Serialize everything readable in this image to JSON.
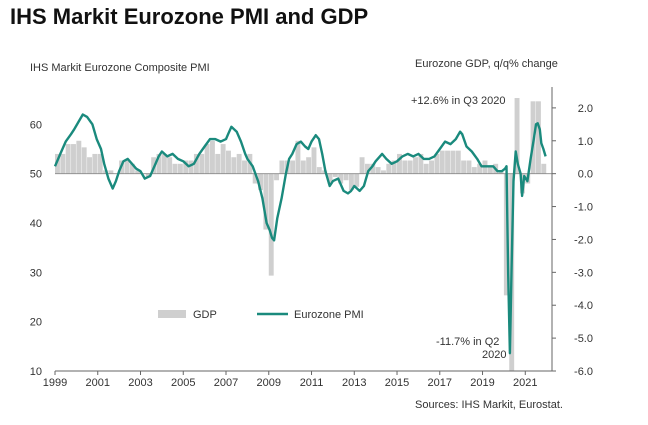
{
  "page": {
    "title": "IHS Markit Eurozone PMI and GDP"
  },
  "colors": {
    "pmi_line": "#1a8a7d",
    "gdp_bar": "#cfcfcf",
    "zero_line": "#888888",
    "axis": "#666666"
  },
  "chart_data": {
    "type": "bar+line",
    "title": "IHS Markit Eurozone PMI and GDP",
    "left_axis_label": "IHS Markit Eurozone Composite PMI",
    "right_axis_label": "Eurozone GDP, q/q% change",
    "left_ylim": [
      10,
      70
    ],
    "right_ylim": [
      -6.0,
      3.0
    ],
    "left_ticks": [
      "10",
      "20",
      "30",
      "40",
      "50",
      "60"
    ],
    "left_tick_values": [
      10,
      20,
      30,
      40,
      50,
      60
    ],
    "right_ticks": [
      "-6.0",
      "-5.0",
      "-4.0",
      "-3.0",
      "-2.0",
      "-1.0",
      "0.0",
      "1.0",
      "2.0"
    ],
    "right_tick_values": [
      -6.0,
      -5.0,
      -4.0,
      -3.0,
      -2.0,
      -1.0,
      0.0,
      1.0,
      2.0
    ],
    "xlim": [
      1999.0,
      2022.25
    ],
    "x_ticks": [
      "1999",
      "2001",
      "2003",
      "2005",
      "2007",
      "2009",
      "2011",
      "2013",
      "2015",
      "2017",
      "2019",
      "2021"
    ],
    "x_tick_values": [
      1999,
      2001,
      2003,
      2005,
      2007,
      2009,
      2011,
      2013,
      2015,
      2017,
      2019,
      2021
    ],
    "legend": {
      "gdp_label": "GDP",
      "pmi_label": "Eurozone PMI",
      "position": "bottom-left"
    },
    "annotations": {
      "q3_2020": "+12.6% in Q3 2020",
      "q2_2020_line1": "-11.7% in Q2",
      "q2_2020_line2": "2020"
    },
    "source": "Sources: IHS Markit, Eurostat.",
    "gdp_series": {
      "name": "GDP",
      "quarters": [
        [
          1999.0,
          0.6
        ],
        [
          1999.25,
          0.6
        ],
        [
          1999.5,
          0.9
        ],
        [
          1999.75,
          0.9
        ],
        [
          2000.0,
          1.0
        ],
        [
          2000.25,
          0.8
        ],
        [
          2000.5,
          0.5
        ],
        [
          2000.75,
          0.6
        ],
        [
          2001.0,
          0.6
        ],
        [
          2001.25,
          0.1
        ],
        [
          2001.5,
          0.1
        ],
        [
          2001.75,
          0.0
        ],
        [
          2002.0,
          0.4
        ],
        [
          2002.25,
          0.4
        ],
        [
          2002.5,
          0.3
        ],
        [
          2002.75,
          0.1
        ],
        [
          2003.0,
          0.0
        ],
        [
          2003.25,
          -0.1
        ],
        [
          2003.5,
          0.5
        ],
        [
          2003.75,
          0.6
        ],
        [
          2004.0,
          0.6
        ],
        [
          2004.25,
          0.5
        ],
        [
          2004.5,
          0.3
        ],
        [
          2004.75,
          0.3
        ],
        [
          2005.0,
          0.4
        ],
        [
          2005.25,
          0.4
        ],
        [
          2005.5,
          0.6
        ],
        [
          2005.75,
          0.6
        ],
        [
          2006.0,
          0.9
        ],
        [
          2006.25,
          1.0
        ],
        [
          2006.5,
          0.6
        ],
        [
          2006.75,
          0.9
        ],
        [
          2007.0,
          0.7
        ],
        [
          2007.25,
          0.5
        ],
        [
          2007.5,
          0.6
        ],
        [
          2007.75,
          0.4
        ],
        [
          2008.0,
          0.6
        ],
        [
          2008.25,
          -0.3
        ],
        [
          2008.5,
          -0.5
        ],
        [
          2008.75,
          -1.7
        ],
        [
          2009.0,
          -3.1
        ],
        [
          2009.25,
          -0.2
        ],
        [
          2009.5,
          0.4
        ],
        [
          2009.75,
          0.4
        ],
        [
          2010.0,
          0.4
        ],
        [
          2010.25,
          1.0
        ],
        [
          2010.5,
          0.4
        ],
        [
          2010.75,
          0.5
        ],
        [
          2011.0,
          0.8
        ],
        [
          2011.25,
          0.2
        ],
        [
          2011.5,
          0.1
        ],
        [
          2011.75,
          -0.3
        ],
        [
          2012.0,
          -0.1
        ],
        [
          2012.25,
          -0.3
        ],
        [
          2012.5,
          -0.2
        ],
        [
          2012.75,
          -0.5
        ],
        [
          2013.0,
          -0.4
        ],
        [
          2013.25,
          0.5
        ],
        [
          2013.5,
          0.3
        ],
        [
          2013.75,
          0.3
        ],
        [
          2014.0,
          0.2
        ],
        [
          2014.25,
          0.1
        ],
        [
          2014.5,
          0.3
        ],
        [
          2014.75,
          0.4
        ],
        [
          2015.0,
          0.6
        ],
        [
          2015.25,
          0.4
        ],
        [
          2015.5,
          0.4
        ],
        [
          2015.75,
          0.5
        ],
        [
          2016.0,
          0.6
        ],
        [
          2016.25,
          0.3
        ],
        [
          2016.5,
          0.4
        ],
        [
          2016.75,
          0.6
        ],
        [
          2017.0,
          0.7
        ],
        [
          2017.25,
          0.7
        ],
        [
          2017.5,
          0.7
        ],
        [
          2017.75,
          0.7
        ],
        [
          2018.0,
          0.4
        ],
        [
          2018.25,
          0.4
        ],
        [
          2018.5,
          0.2
        ],
        [
          2018.75,
          0.3
        ],
        [
          2019.0,
          0.4
        ],
        [
          2019.25,
          0.2
        ],
        [
          2019.5,
          0.3
        ],
        [
          2019.75,
          0.1
        ],
        [
          2020.0,
          -3.7
        ],
        [
          2020.25,
          -11.7
        ],
        [
          2020.5,
          12.6
        ],
        [
          2020.75,
          -0.6
        ],
        [
          2021.0,
          -0.3
        ],
        [
          2021.25,
          2.2
        ],
        [
          2021.5,
          2.2
        ],
        [
          2021.75,
          0.3
        ]
      ]
    },
    "pmi_series": {
      "name": "Eurozone PMI",
      "points": [
        [
          1999.0,
          51.5
        ],
        [
          1999.25,
          54
        ],
        [
          1999.5,
          56.5
        ],
        [
          1999.75,
          58
        ],
        [
          1999.9,
          59
        ],
        [
          2000.1,
          60.5
        ],
        [
          2000.3,
          62
        ],
        [
          2000.5,
          61.5
        ],
        [
          2000.75,
          60
        ],
        [
          2000.95,
          57
        ],
        [
          2001.15,
          55
        ],
        [
          2001.3,
          52
        ],
        [
          2001.5,
          49
        ],
        [
          2001.7,
          47
        ],
        [
          2001.85,
          48.5
        ],
        [
          2002.0,
          50.5
        ],
        [
          2002.2,
          52.5
        ],
        [
          2002.4,
          53
        ],
        [
          2002.6,
          52
        ],
        [
          2002.8,
          51
        ],
        [
          2003.0,
          50.5
        ],
        [
          2003.2,
          49
        ],
        [
          2003.45,
          49.5
        ],
        [
          2003.65,
          51.5
        ],
        [
          2003.85,
          53.5
        ],
        [
          2004.0,
          54.5
        ],
        [
          2004.25,
          53.5
        ],
        [
          2004.5,
          54
        ],
        [
          2004.75,
          53
        ],
        [
          2005.0,
          52.5
        ],
        [
          2005.25,
          51.5
        ],
        [
          2005.5,
          52
        ],
        [
          2005.75,
          54
        ],
        [
          2006.0,
          55.5
        ],
        [
          2006.25,
          57
        ],
        [
          2006.5,
          57
        ],
        [
          2006.75,
          56.5
        ],
        [
          2007.0,
          57
        ],
        [
          2007.1,
          58
        ],
        [
          2007.25,
          59.5
        ],
        [
          2007.5,
          58.5
        ],
        [
          2007.7,
          56.5
        ],
        [
          2007.9,
          54
        ],
        [
          2008.0,
          53
        ],
        [
          2008.25,
          51.5
        ],
        [
          2008.5,
          48.5
        ],
        [
          2008.7,
          45
        ],
        [
          2008.9,
          40
        ],
        [
          2009.05,
          38.5
        ],
        [
          2009.15,
          37
        ],
        [
          2009.25,
          36.5
        ],
        [
          2009.4,
          41
        ],
        [
          2009.6,
          45
        ],
        [
          2009.8,
          50
        ],
        [
          2009.95,
          53
        ],
        [
          2010.1,
          54
        ],
        [
          2010.3,
          56
        ],
        [
          2010.5,
          56.5
        ],
        [
          2010.7,
          55.5
        ],
        [
          2010.85,
          55
        ],
        [
          2011.0,
          56.5
        ],
        [
          2011.2,
          57.8
        ],
        [
          2011.35,
          57
        ],
        [
          2011.5,
          54
        ],
        [
          2011.65,
          50.5
        ],
        [
          2011.85,
          47.5
        ],
        [
          2012.0,
          48.5
        ],
        [
          2012.25,
          49
        ],
        [
          2012.5,
          46.5
        ],
        [
          2012.7,
          46
        ],
        [
          2012.85,
          46.5
        ],
        [
          2013.0,
          47.5
        ],
        [
          2013.25,
          46.5
        ],
        [
          2013.45,
          47.5
        ],
        [
          2013.65,
          50.5
        ],
        [
          2013.85,
          51.5
        ],
        [
          2014.0,
          52.5
        ],
        [
          2014.3,
          54
        ],
        [
          2014.5,
          53
        ],
        [
          2014.75,
          52
        ],
        [
          2015.0,
          52.5
        ],
        [
          2015.25,
          53.5
        ],
        [
          2015.5,
          54
        ],
        [
          2015.75,
          53.5
        ],
        [
          2016.0,
          54
        ],
        [
          2016.25,
          53
        ],
        [
          2016.5,
          53
        ],
        [
          2016.75,
          53.5
        ],
        [
          2017.0,
          55
        ],
        [
          2017.25,
          56.5
        ],
        [
          2017.5,
          56
        ],
        [
          2017.75,
          57
        ],
        [
          2017.95,
          58.5
        ],
        [
          2018.05,
          58
        ],
        [
          2018.25,
          55.5
        ],
        [
          2018.5,
          54.5
        ],
        [
          2018.75,
          53
        ],
        [
          2018.95,
          51.5
        ],
        [
          2019.1,
          51.5
        ],
        [
          2019.3,
          51.5
        ],
        [
          2019.5,
          51.5
        ],
        [
          2019.7,
          50.5
        ],
        [
          2019.9,
          50.5
        ],
        [
          2020.05,
          51
        ],
        [
          2020.12,
          51.5
        ],
        [
          2020.2,
          29.5
        ],
        [
          2020.28,
          13.6
        ],
        [
          2020.36,
          31
        ],
        [
          2020.45,
          48.5
        ],
        [
          2020.55,
          54.5
        ],
        [
          2020.65,
          52
        ],
        [
          2020.78,
          50
        ],
        [
          2020.85,
          45.5
        ],
        [
          2020.95,
          49.5
        ],
        [
          2021.1,
          48.5
        ],
        [
          2021.25,
          53
        ],
        [
          2021.4,
          57
        ],
        [
          2021.5,
          60
        ],
        [
          2021.58,
          60.2
        ],
        [
          2021.68,
          59
        ],
        [
          2021.75,
          56.2
        ],
        [
          2021.85,
          55
        ],
        [
          2021.95,
          53.5
        ]
      ]
    }
  }
}
